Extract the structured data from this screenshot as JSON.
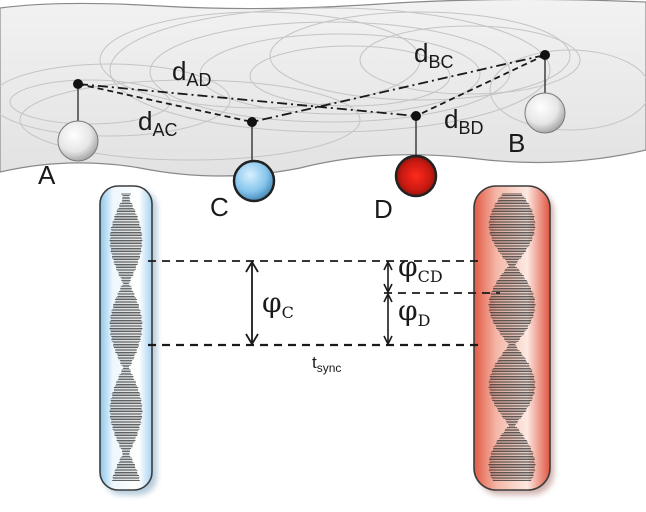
{
  "points": {
    "a": "A",
    "b": "B",
    "c": "C",
    "d": "D"
  },
  "distances": {
    "ad": {
      "main": "d",
      "sub": "AD"
    },
    "ac": {
      "main": "d",
      "sub": "AC"
    },
    "bc": {
      "main": "d",
      "sub": "BC"
    },
    "bd": {
      "main": "d",
      "sub": "BD"
    }
  },
  "phases": {
    "c": {
      "main": "φ",
      "sub": "C"
    },
    "d": {
      "main": "φ",
      "sub": "D"
    },
    "cd": {
      "main": "φ",
      "sub": "CD"
    }
  },
  "sync": {
    "main": "t",
    "sub": "sync"
  },
  "colors": {
    "surface": "#e9e9e9",
    "ripple": "#c9c9c9",
    "sphere_neutral": "#f4f4f4",
    "sphere_c": "#7fc2ea",
    "sphere_d": "#d8201a",
    "bar_c": "#cfe6f5",
    "bar_d": "#e8796a"
  }
}
